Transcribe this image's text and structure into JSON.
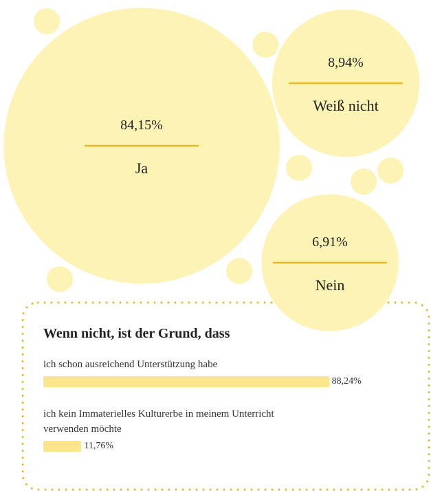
{
  "chart_data": [
    {
      "type": "bubble",
      "categories": [
        "Ja",
        "Weiß nicht",
        "Nein"
      ],
      "values": [
        84.15,
        8.94,
        6.91
      ],
      "value_labels": [
        "84,15%",
        "8,94%",
        "6,91%"
      ],
      "color": "#fdf3b5"
    },
    {
      "type": "hbar",
      "title": "Wenn nicht, ist der Grund, dass",
      "categories": [
        "ich schon ausreichend Unterstützung habe",
        "ich kein Immaterielles Kulturerbe in meinem Unterricht verwenden möchte"
      ],
      "values": [
        88.24,
        11.76
      ],
      "value_labels": [
        "88,24%",
        "11,76%"
      ],
      "xlim": [
        0,
        100
      ],
      "color": "#fce68c"
    }
  ]
}
